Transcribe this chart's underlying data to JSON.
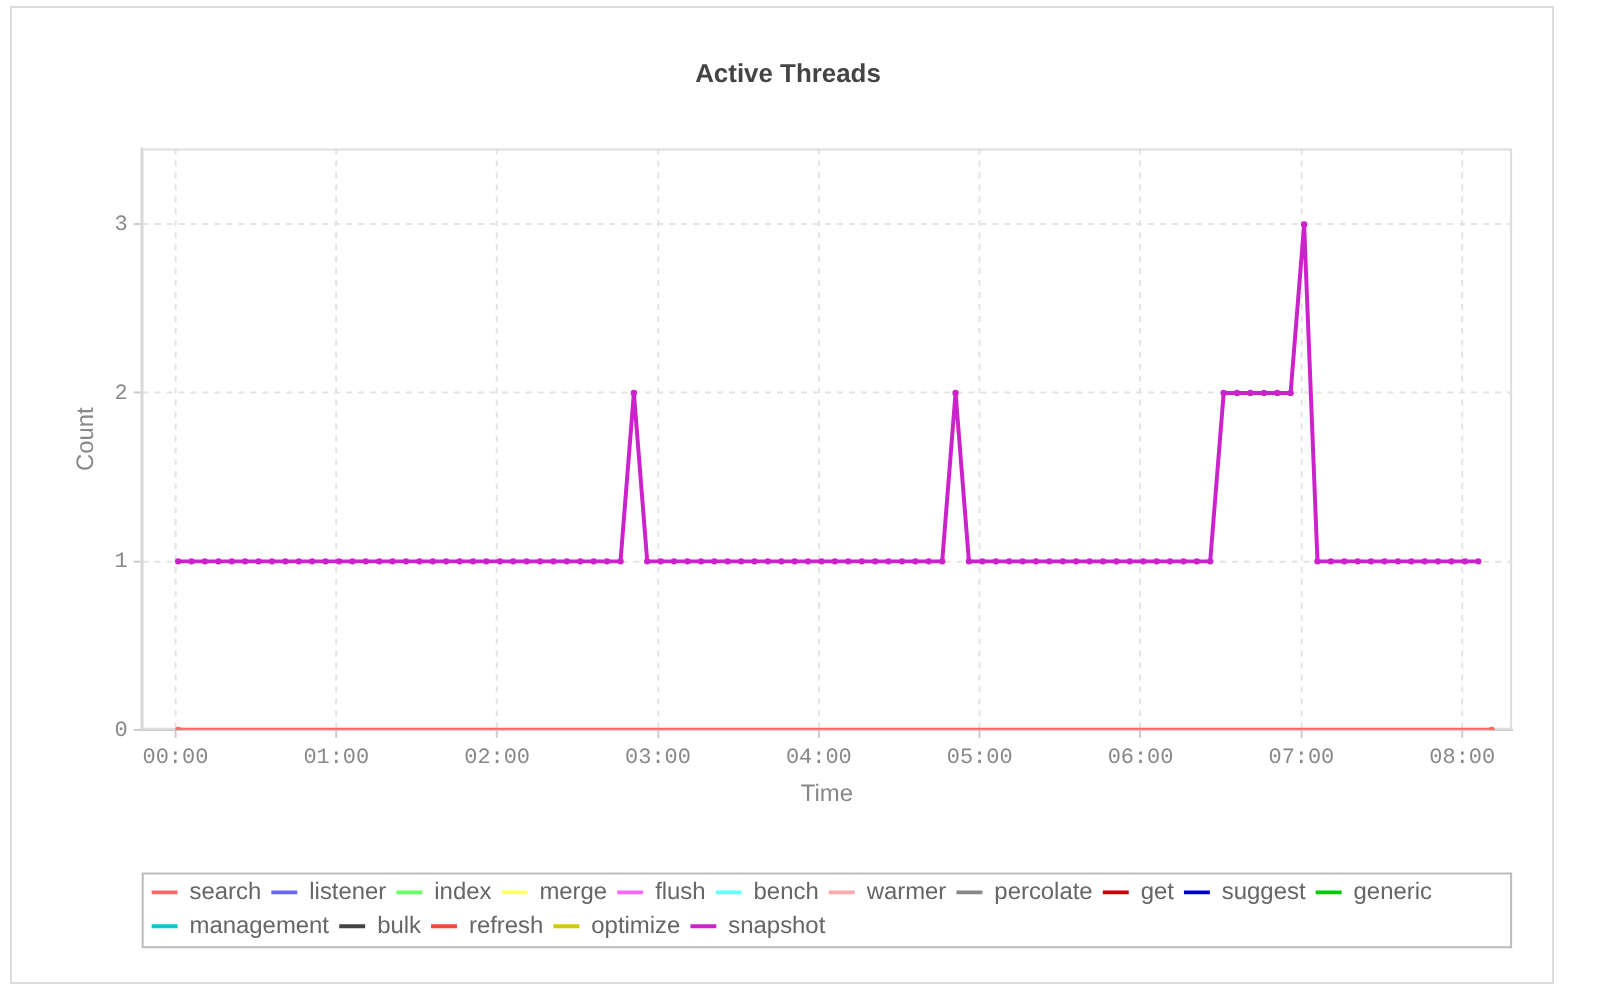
{
  "chart_data": {
    "type": "line",
    "title": "Active Threads",
    "xlabel": "Time",
    "ylabel": "Count",
    "x": [
      0.017,
      8.183
    ],
    "xlim": [
      -0.21,
      8.31
    ],
    "xticks": [
      {
        "value": 0,
        "label": "00:00"
      },
      {
        "value": 1,
        "label": "01:00"
      },
      {
        "value": 2,
        "label": "02:00"
      },
      {
        "value": 3,
        "label": "03:00"
      },
      {
        "value": 4,
        "label": "04:00"
      },
      {
        "value": 5,
        "label": "05:00"
      },
      {
        "value": 6,
        "label": "06:00"
      },
      {
        "value": 7,
        "label": "07:00"
      },
      {
        "value": 8,
        "label": "08:00"
      }
    ],
    "ylim": [
      0,
      3.45
    ],
    "yticks": [
      0,
      1,
      2,
      3
    ],
    "grid": true,
    "legend": "bottom",
    "marker": "circle",
    "series": [
      {
        "name": "search",
        "color": "#ff6666",
        "values": [
          0,
          0
        ]
      },
      {
        "name": "listener",
        "color": "#6666ff",
        "values": [
          null,
          null
        ]
      },
      {
        "name": "index",
        "color": "#66ff66",
        "values": [
          null,
          null
        ]
      },
      {
        "name": "merge",
        "color": "#ffff66",
        "values": [
          null,
          null
        ]
      },
      {
        "name": "flush",
        "color": "#ff66ff",
        "values": [
          null,
          null
        ]
      },
      {
        "name": "bench",
        "color": "#66ffff",
        "values": [
          null,
          null
        ]
      },
      {
        "name": "warmer",
        "color": "#ffaaaa",
        "values": [
          null,
          null
        ]
      },
      {
        "name": "percolate",
        "color": "#888888",
        "values": [
          null,
          null
        ]
      },
      {
        "name": "get",
        "color": "#cc0000",
        "values": [
          null,
          null
        ]
      },
      {
        "name": "suggest",
        "color": "#0000cc",
        "values": [
          null,
          null
        ]
      },
      {
        "name": "generic",
        "color": "#00cc00",
        "values": [
          null,
          null
        ]
      },
      {
        "name": "management",
        "color": "#00cccc",
        "values": [
          null,
          null
        ]
      },
      {
        "name": "bulk",
        "color": "#444444",
        "values": [
          null,
          null
        ]
      },
      {
        "name": "refresh",
        "color": "#ff4444",
        "values": [
          null,
          null
        ]
      },
      {
        "name": "optimize",
        "color": "#cccc00",
        "values": [
          null,
          null
        ]
      },
      {
        "name": "snapshot",
        "color": "#cc22cc",
        "x": [
          0.017,
          0.1,
          0.183,
          0.267,
          0.35,
          0.433,
          0.517,
          0.6,
          0.683,
          0.767,
          0.85,
          0.933,
          1.017,
          1.1,
          1.183,
          1.267,
          1.35,
          1.433,
          1.517,
          1.6,
          1.683,
          1.767,
          1.85,
          1.933,
          2.017,
          2.1,
          2.183,
          2.267,
          2.35,
          2.433,
          2.517,
          2.6,
          2.683,
          2.767,
          2.85,
          2.933,
          3.017,
          3.1,
          3.183,
          3.267,
          3.35,
          3.433,
          3.517,
          3.6,
          3.683,
          3.767,
          3.85,
          3.933,
          4.017,
          4.1,
          4.183,
          4.267,
          4.35,
          4.433,
          4.517,
          4.6,
          4.683,
          4.767,
          4.85,
          4.933,
          5.017,
          5.1,
          5.183,
          5.267,
          5.35,
          5.433,
          5.517,
          5.6,
          5.683,
          5.767,
          5.85,
          5.933,
          6.017,
          6.1,
          6.183,
          6.267,
          6.35,
          6.433,
          6.517,
          6.6,
          6.683,
          6.767,
          6.85,
          6.933,
          7.017,
          7.1,
          7.183,
          7.267,
          7.35,
          7.433,
          7.517,
          7.6,
          7.683,
          7.767,
          7.85,
          7.933,
          8.017,
          8.1
        ],
        "values": [
          1,
          1,
          1,
          1,
          1,
          1,
          1,
          1,
          1,
          1,
          1,
          1,
          1,
          1,
          1,
          1,
          1,
          1,
          1,
          1,
          1,
          1,
          1,
          1,
          1,
          1,
          1,
          1,
          1,
          1,
          1,
          1,
          1,
          1,
          2,
          1,
          1,
          1,
          1,
          1,
          1,
          1,
          1,
          1,
          1,
          1,
          1,
          1,
          1,
          1,
          1,
          1,
          1,
          1,
          1,
          1,
          1,
          1,
          2,
          1,
          1,
          1,
          1,
          1,
          1,
          1,
          1,
          1,
          1,
          1,
          1,
          1,
          1,
          1,
          1,
          1,
          1,
          1,
          2,
          2,
          2,
          2,
          2,
          2,
          3,
          1,
          1,
          1,
          1,
          1,
          1,
          1,
          1,
          1,
          1,
          1,
          1,
          1
        ]
      }
    ]
  }
}
